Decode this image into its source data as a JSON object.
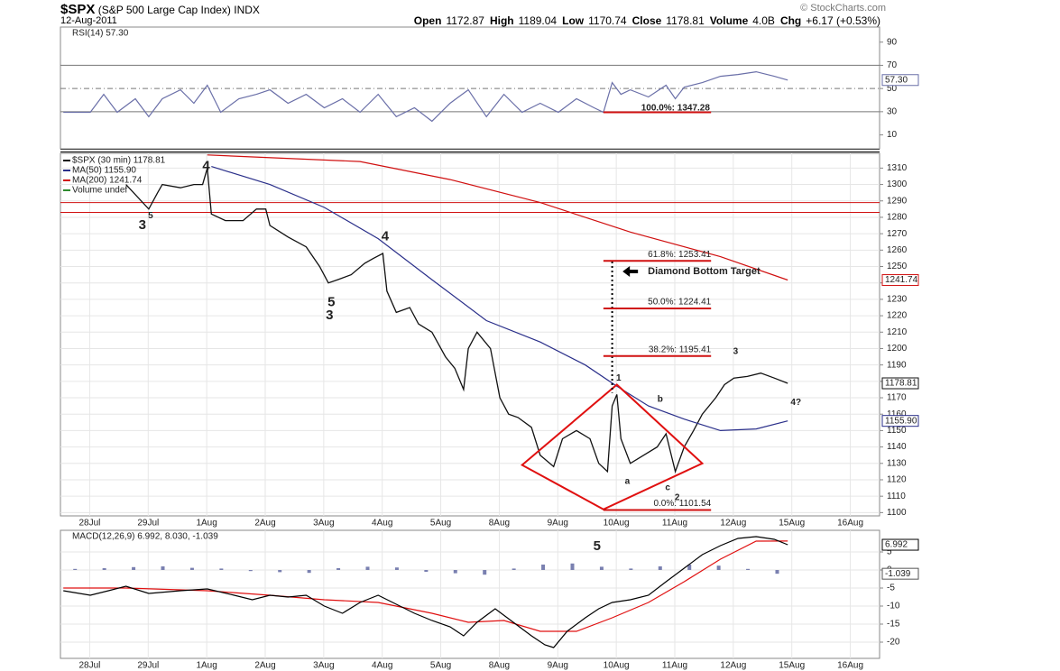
{
  "header": {
    "symbol": "$SPX",
    "name": "(S&P 500 Large Cap Index) INDX",
    "date": "12-Aug-2011",
    "copyright": "© StockCharts.com",
    "quote": [
      {
        "label": "Open",
        "value": "1172.87"
      },
      {
        "label": "High",
        "value": "1189.04"
      },
      {
        "label": "Low",
        "value": "1170.74"
      },
      {
        "label": "Close",
        "value": "1178.81"
      },
      {
        "label": "Volume",
        "value": "4.0B"
      },
      {
        "label": "Chg",
        "value": "+6.17 (+0.53%)"
      }
    ]
  },
  "chart_data": [
    {
      "type": "line",
      "title": "RSI(14) 57.30",
      "xlim": [
        -0.5,
        13.5
      ],
      "ylim": [
        -2,
        103
      ],
      "yticks": [
        10,
        30,
        50,
        70,
        90
      ],
      "reference_lines": [
        {
          "value": 70
        },
        {
          "value": 30
        },
        {
          "value": 50,
          "dashed": true
        }
      ],
      "series": [
        {
          "color": "#6a6fa8",
          "type": "line",
          "x": [
            -0.45,
            0.01,
            0.24,
            0.47,
            0.78,
            1.01,
            1.24,
            1.55,
            1.78,
            2.01,
            2.24,
            2.55,
            2.85,
            3.08,
            3.39,
            3.7,
            4.01,
            4.32,
            4.62,
            4.93,
            5.24,
            5.55,
            5.85,
            6.16,
            6.47,
            6.78,
            7.08,
            7.39,
            7.7,
            8.01,
            8.32,
            8.62,
            8.78,
            8.93,
            9.08,
            9.24,
            9.55,
            9.85,
            10.01,
            10.16,
            10.47,
            10.78,
            11.08,
            11.39,
            11.7,
            11.93
          ],
          "values": [
            29.5,
            29.5,
            45,
            29.5,
            41.2,
            25.7,
            41.2,
            48.9,
            37.3,
            52.8,
            29.5,
            41.2,
            45,
            48.9,
            37.3,
            45,
            33.4,
            41.2,
            29.5,
            45,
            25.7,
            33.4,
            21.8,
            37.3,
            48.9,
            25.7,
            45,
            29.5,
            37.3,
            29.5,
            41.2,
            33.4,
            29.5,
            55.1,
            45,
            48.9,
            42.7,
            52.8,
            41.2,
            51.2,
            55.1,
            60.5,
            62.1,
            64.4,
            60.5,
            57.3
          ]
        }
      ],
      "annotations": [
        {
          "type": "segment",
          "x": [
            8.78,
            10.62
          ],
          "y": [
            29.5,
            29.5
          ],
          "color": "#d01010"
        },
        {
          "type": "text",
          "text": "100.0%: 1347.28",
          "x": 10.6,
          "y": 33,
          "color": "#888888",
          "anchor": "end"
        }
      ],
      "last_labels": [
        {
          "value": 57.3,
          "label": "57.30",
          "color": "#6a6fa8"
        }
      ]
    },
    {
      "type": "line",
      "xlim": [
        -0.5,
        13.5
      ],
      "ylim": [
        1098,
        1319
      ],
      "grid": true,
      "yticks": [
        1100,
        1110,
        1120,
        1130,
        1140,
        1150,
        1160,
        1170,
        1180,
        1190,
        1200,
        1210,
        1220,
        1230,
        1240,
        1250,
        1260,
        1270,
        1280,
        1290,
        1300,
        1310
      ],
      "xticks": [
        {
          "value": 0,
          "label": "28Jul"
        },
        {
          "value": 1,
          "label": "29Jul"
        },
        {
          "value": 2,
          "label": "1Aug"
        },
        {
          "value": 3,
          "label": "2Aug"
        },
        {
          "value": 4,
          "label": "3Aug"
        },
        {
          "value": 5,
          "label": "4Aug"
        },
        {
          "value": 6,
          "label": "5Aug"
        },
        {
          "value": 7,
          "label": "8Aug"
        },
        {
          "value": 8,
          "label": "9Aug"
        },
        {
          "value": 9,
          "label": "10Aug"
        },
        {
          "value": 10,
          "label": "11Aug"
        },
        {
          "value": 11,
          "label": "12Aug"
        },
        {
          "value": 12,
          "label": "15Aug"
        },
        {
          "value": 13,
          "label": "16Aug"
        }
      ],
      "reference_lines": [
        {
          "value": 1289,
          "color": "#d01010"
        },
        {
          "value": 1283,
          "color": "#d01010"
        }
      ],
      "series": [
        {
          "name": "$SPX (30 min) 1178.81",
          "color": "#111111",
          "type": "line",
          "x": [
            0.62,
            1.01,
            1.16,
            1.24,
            1.55,
            1.78,
            1.93,
            2.01,
            2.08,
            2.32,
            2.62,
            2.85,
            3.01,
            3.08,
            3.39,
            3.7,
            3.93,
            4.08,
            4.24,
            4.47,
            4.7,
            4.85,
            5.01,
            5.08,
            5.24,
            5.47,
            5.62,
            5.85,
            6.08,
            6.24,
            6.39,
            6.47,
            6.62,
            6.85,
            7.01,
            7.16,
            7.32,
            7.55,
            7.7,
            7.93,
            8.08,
            8.32,
            8.55,
            8.7,
            8.85,
            8.93,
            9.01,
            9.08,
            9.24,
            9.47,
            9.7,
            9.85,
            10.01,
            10.16,
            10.32,
            10.47,
            10.7,
            10.85,
            11.01,
            11.24,
            11.47,
            11.7,
            11.93
          ],
          "values": [
            1300,
            1285,
            1295,
            1300,
            1298,
            1300,
            1300,
            1310,
            1282,
            1278,
            1278,
            1285,
            1285,
            1275,
            1268,
            1262,
            1250,
            1240,
            1242,
            1245,
            1252,
            1255,
            1258,
            1235,
            1222,
            1225,
            1215,
            1210,
            1195,
            1188,
            1175,
            1200,
            1210,
            1200,
            1170,
            1160,
            1158,
            1152,
            1135,
            1128,
            1145,
            1150,
            1145,
            1130,
            1125,
            1165,
            1172,
            1145,
            1130,
            1135,
            1140,
            1148,
            1125,
            1140,
            1150,
            1160,
            1170,
            1178,
            1182,
            1183,
            1185,
            1182,
            1178.81
          ]
        },
        {
          "name": "MA(50) 1155.90",
          "color": "#2a2f8a",
          "type": "line",
          "x": [
            2.08,
            3.08,
            4.01,
            4.93,
            5.85,
            6.78,
            7.7,
            8.47,
            9.01,
            9.55,
            10.16,
            10.78,
            11.39,
            11.93
          ],
          "values": [
            1311,
            1300,
            1286,
            1267,
            1242,
            1217,
            1204,
            1190,
            1177,
            1165,
            1157,
            1150,
            1151,
            1155.9
          ]
        },
        {
          "name": "MA(200) 1241.74",
          "color": "#d01010",
          "type": "line",
          "x": [
            2.01,
            4.62,
            6.16,
            7.7,
            9.24,
            10.78,
            11.93
          ],
          "values": [
            1318,
            1314,
            1303,
            1289,
            1271,
            1256,
            1241.74
          ]
        },
        {
          "name": "Volume undef",
          "color": "#2e8b2e",
          "type": "line",
          "x": [],
          "values": []
        }
      ],
      "annotations": [
        {
          "type": "polygon",
          "x": [
            7.39,
            9.01,
            10.47,
            8.78
          ],
          "y": [
            1129,
            1178,
            1130,
            1102
          ],
          "color": "#e01010"
        },
        {
          "type": "segment",
          "x": [
            8.93,
            8.93
          ],
          "y": [
            1253,
            1173
          ],
          "color": "#000000",
          "dashed": true
        },
        {
          "type": "level",
          "label": "61.8%: 1253.41",
          "value": 1253.41,
          "x": [
            8.78,
            10.62
          ],
          "color": "#d01010"
        },
        {
          "type": "level",
          "label": "50.0%: 1224.41",
          "value": 1224.41,
          "x": [
            8.78,
            10.62
          ],
          "color": "#d01010"
        },
        {
          "type": "level",
          "label": "38.2%: 1195.41",
          "value": 1195.41,
          "x": [
            8.78,
            10.62
          ],
          "color": "#d01010"
        },
        {
          "type": "level",
          "label": "0.0%: 1101.54",
          "value": 1101.54,
          "x": [
            8.78,
            10.62
          ],
          "color": "#d01010"
        },
        {
          "type": "text",
          "text": "Diamond Bottom Target",
          "x": 9.54,
          "y": 1247,
          "color": "#000000",
          "bold": true,
          "arrow": true
        },
        {
          "type": "text",
          "text": "3",
          "x": 0.9,
          "y": 1275,
          "color": "#000000",
          "large": true
        },
        {
          "type": "text",
          "text": "5",
          "x": 1.04,
          "y": 1281,
          "color": "#d01010"
        },
        {
          "type": "text",
          "text": "4",
          "x": 1.99,
          "y": 1311,
          "color": "#000000",
          "large": true
        },
        {
          "type": "text",
          "text": "5",
          "x": 4.13,
          "y": 1228,
          "color": "#000000",
          "large": true
        },
        {
          "type": "text",
          "text": "3",
          "x": 4.1,
          "y": 1220,
          "color": "#d01010",
          "large": true
        },
        {
          "type": "text",
          "text": "4",
          "x": 5.05,
          "y": 1268,
          "color": "#d01010",
          "large": true
        },
        {
          "type": "text",
          "text": "1",
          "x": 9.04,
          "y": 1182,
          "color": "#1a2fc0"
        },
        {
          "type": "text",
          "text": "b",
          "x": 9.75,
          "y": 1169,
          "color": "#1a2fc0"
        },
        {
          "type": "text",
          "text": "a",
          "x": 9.19,
          "y": 1119,
          "color": "#1a2fc0"
        },
        {
          "type": "text",
          "text": "c",
          "x": 9.88,
          "y": 1115,
          "color": "#1a2fc0"
        },
        {
          "type": "text",
          "text": "2",
          "x": 10.04,
          "y": 1109,
          "color": "#1a2fc0"
        },
        {
          "type": "text",
          "text": "3",
          "x": 11.04,
          "y": 1198,
          "color": "#1a2fc0"
        },
        {
          "type": "text",
          "text": "4?",
          "x": 12.07,
          "y": 1167,
          "color": "#1a2fc0"
        }
      ],
      "last_labels": [
        {
          "value": 1241.74,
          "label": "1241.74",
          "color": "#d01010"
        },
        {
          "value": 1178.81,
          "label": "1178.81",
          "color": "#111111"
        },
        {
          "value": 1155.9,
          "label": "1155.90",
          "color": "#2a2f8a"
        }
      ]
    },
    {
      "type": "line",
      "title": "MACD(12,26,9) 6.992, 8.030, -1.039",
      "xlim": [
        -0.5,
        13.5
      ],
      "ylim": [
        -24.5,
        11
      ],
      "grid": true,
      "yticks": [
        -20,
        -15,
        -10,
        -5,
        0,
        5
      ],
      "xticks": [
        {
          "value": 0,
          "label": "28Jul"
        },
        {
          "value": 1,
          "label": "29Jul"
        },
        {
          "value": 2,
          "label": "1Aug"
        },
        {
          "value": 3,
          "label": "2Aug"
        },
        {
          "value": 4,
          "label": "3Aug"
        },
        {
          "value": 5,
          "label": "4Aug"
        },
        {
          "value": 6,
          "label": "5Aug"
        },
        {
          "value": 7,
          "label": "8Aug"
        },
        {
          "value": 8,
          "label": "9Aug"
        },
        {
          "value": 9,
          "label": "10Aug"
        },
        {
          "value": 10,
          "label": "11Aug"
        },
        {
          "value": 11,
          "label": "12Aug"
        },
        {
          "value": 12,
          "label": "15Aug"
        },
        {
          "value": 13,
          "label": "16Aug"
        }
      ],
      "series": [
        {
          "color": "#7a80b0",
          "type": "histogram",
          "x": [
            -0.25,
            0.25,
            0.75,
            1.25,
            1.75,
            2.25,
            2.75,
            3.25,
            3.75,
            4.25,
            4.75,
            5.25,
            5.75,
            6.25,
            6.75,
            7.25,
            7.75,
            8.25,
            8.75,
            9.25,
            9.75,
            10.25,
            10.75,
            11.25,
            11.75
          ],
          "values": [
            0.3,
            0.5,
            0.8,
            1.0,
            0.6,
            0.4,
            -0.3,
            -0.6,
            -0.8,
            0.5,
            0.9,
            0.7,
            -0.5,
            -0.9,
            -1.3,
            0.4,
            1.5,
            1.8,
            0.9,
            0.4,
            1.0,
            1.5,
            1.2,
            0.3,
            -1.039
          ]
        },
        {
          "color": "#e01010",
          "type": "line",
          "x": [
            -0.45,
            0.62,
            2.01,
            3.08,
            4.01,
            4.93,
            5.85,
            6.47,
            7.08,
            7.7,
            8.32,
            8.93,
            9.55,
            10.16,
            10.78,
            11.39,
            11.93
          ],
          "values": [
            -5,
            -5,
            -5.75,
            -7,
            -8.25,
            -9,
            -12,
            -14.5,
            -14,
            -17,
            -17,
            -13.25,
            -9,
            -3.25,
            3,
            8,
            8.03
          ]
        },
        {
          "color": "#000000",
          "type": "line",
          "x": [
            -0.45,
            0.01,
            0.32,
            0.62,
            1.01,
            1.55,
            2.01,
            2.47,
            2.78,
            3.08,
            3.39,
            3.7,
            4.01,
            4.32,
            4.62,
            4.93,
            5.24,
            5.55,
            5.85,
            6.16,
            6.39,
            6.62,
            6.93,
            7.24,
            7.55,
            7.78,
            7.93,
            8.16,
            8.47,
            8.7,
            8.93,
            9.24,
            9.55,
            9.85,
            10.16,
            10.47,
            10.78,
            11.08,
            11.39,
            11.7,
            11.93
          ],
          "values": [
            -5.75,
            -7,
            -5.75,
            -4.5,
            -6.5,
            -5.75,
            -5.25,
            -7,
            -8.25,
            -7,
            -7.5,
            -7,
            -10,
            -12,
            -9,
            -7,
            -9.5,
            -12,
            -14,
            -15.75,
            -18.25,
            -14.5,
            -10.75,
            -14.5,
            -18.25,
            -20.75,
            -21.5,
            -17,
            -13.25,
            -10.75,
            -9,
            -8.25,
            -7,
            -3.25,
            0.5,
            4.25,
            6.75,
            8.75,
            9.25,
            8.5,
            6.992
          ]
        }
      ],
      "annotations": [
        {
          "type": "text",
          "text": "5",
          "x": 8.67,
          "y": 6.5,
          "color": "#d01010",
          "large": true
        }
      ],
      "last_labels": [
        {
          "value": 6.992,
          "label": "6.992",
          "color": "#000000"
        },
        {
          "value": -1.039,
          "label": "-1.039",
          "color": "#555555"
        }
      ]
    }
  ]
}
